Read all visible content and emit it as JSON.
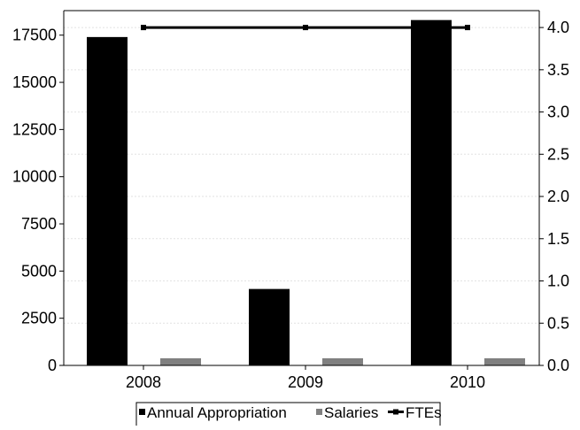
{
  "chart_data": {
    "type": "bar",
    "categories": [
      "2008",
      "2009",
      "2010"
    ],
    "series": [
      {
        "name": "Annual Appropriation",
        "kind": "bar",
        "axis": "left",
        "color": "#000000",
        "values": [
          17400,
          4050,
          18300
        ]
      },
      {
        "name": "Salaries",
        "kind": "bar",
        "axis": "left",
        "color": "#808080",
        "values": [
          380,
          380,
          380
        ]
      },
      {
        "name": "FTEs",
        "kind": "line",
        "axis": "right",
        "color": "#000000",
        "values": [
          4.0,
          4.0,
          4.0
        ]
      }
    ],
    "y_left": {
      "range": [
        0,
        18800
      ],
      "ticks": [
        0,
        2500,
        5000,
        7500,
        10000,
        12500,
        15000,
        17500
      ],
      "tick_labels": [
        "0",
        "2500",
        "5000",
        "7500",
        "10000",
        "12500",
        "15000",
        "17500"
      ]
    },
    "y_right": {
      "range": [
        0,
        4.2
      ],
      "ticks": [
        0,
        0.5,
        1,
        1.5,
        2,
        2.5,
        3,
        3.5,
        4
      ],
      "tick_labels": [
        "0.0",
        "0.5",
        "1.0",
        "1.5",
        "2.0",
        "2.5",
        "3.0",
        "3.5",
        "4.0"
      ]
    },
    "grid": true,
    "legend_position": "bottom",
    "legend": [
      "Annual Appropriation",
      "Salaries",
      "FTEs"
    ],
    "title": "",
    "xlabel": "",
    "ylabel": ""
  }
}
